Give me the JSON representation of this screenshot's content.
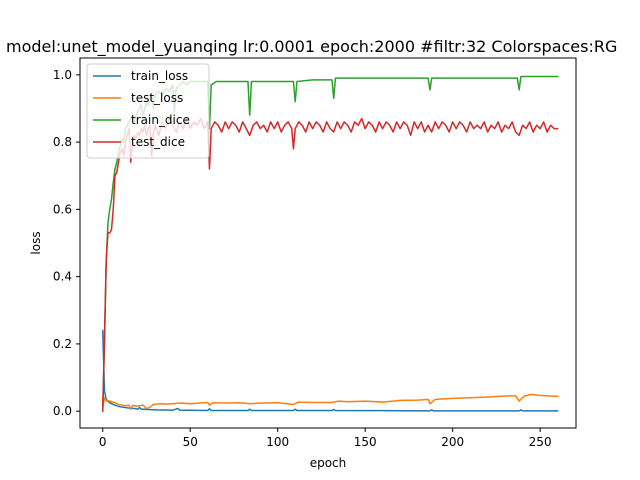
{
  "chart_data": {
    "type": "line",
    "title": "model:unet_model_yuanqing lr:0.0001 epoch:2000 #filtr:32 Colorspaces:RG",
    "xlabel": "epoch",
    "ylabel": "loss",
    "xlim": [
      -13,
      270.5
    ],
    "ylim": [
      -0.05,
      1.05
    ],
    "xticks": [
      0,
      50,
      100,
      150,
      200,
      250
    ],
    "yticks": [
      0.0,
      0.2,
      0.4,
      0.6,
      0.8,
      1.0
    ],
    "xtick_labels": [
      "0",
      "50",
      "100",
      "150",
      "200",
      "250"
    ],
    "ytick_labels": [
      "0.0",
      "0.2",
      "0.4",
      "0.6",
      "0.8",
      "1.0"
    ],
    "grid": false,
    "legend_position": "top-left",
    "series": [
      {
        "name": "train_loss",
        "color": "#1f77b4",
        "points": [
          [
            0,
            0.24
          ],
          [
            1,
            0.06
          ],
          [
            2,
            0.035
          ],
          [
            4,
            0.025
          ],
          [
            6,
            0.02
          ],
          [
            8,
            0.016
          ],
          [
            10,
            0.013
          ],
          [
            14,
            0.01
          ],
          [
            18,
            0.008
          ],
          [
            20,
            0.006
          ],
          [
            21,
            0.011
          ],
          [
            22,
            0.006
          ],
          [
            30,
            0.004
          ],
          [
            40,
            0.003
          ],
          [
            43,
            0.008
          ],
          [
            44,
            0.003
          ],
          [
            60,
            0.002
          ],
          [
            61,
            0.007
          ],
          [
            62,
            0.002
          ],
          [
            83,
            0.002
          ],
          [
            84,
            0.006
          ],
          [
            85,
            0.002
          ],
          [
            109,
            0.002
          ],
          [
            110,
            0.006
          ],
          [
            111,
            0.002
          ],
          [
            131,
            0.002
          ],
          [
            132,
            0.005
          ],
          [
            133,
            0.002
          ],
          [
            187,
            0.001
          ],
          [
            188,
            0.004
          ],
          [
            189,
            0.001
          ],
          [
            238,
            0.001
          ],
          [
            239,
            0.004
          ],
          [
            240,
            0.001
          ],
          [
            260,
            0.001
          ]
        ]
      },
      {
        "name": "test_loss",
        "color": "#ff7f0e",
        "points": [
          [
            0,
            0.01
          ],
          [
            1,
            0.04
          ],
          [
            2,
            0.03
          ],
          [
            3,
            0.032
          ],
          [
            5,
            0.028
          ],
          [
            7,
            0.025
          ],
          [
            9,
            0.02
          ],
          [
            11,
            0.018
          ],
          [
            13,
            0.016
          ],
          [
            15,
            0.018
          ],
          [
            16,
            0.006
          ],
          [
            17,
            0.017
          ],
          [
            20,
            0.015
          ],
          [
            23,
            0.018
          ],
          [
            25,
            0.008
          ],
          [
            27,
            0.012
          ],
          [
            29,
            0.02
          ],
          [
            33,
            0.022
          ],
          [
            37,
            0.021
          ],
          [
            41,
            0.023
          ],
          [
            45,
            0.024
          ],
          [
            50,
            0.022
          ],
          [
            55,
            0.024
          ],
          [
            60,
            0.026
          ],
          [
            61,
            0.018
          ],
          [
            63,
            0.025
          ],
          [
            70,
            0.024
          ],
          [
            78,
            0.025
          ],
          [
            84,
            0.022
          ],
          [
            90,
            0.024
          ],
          [
            100,
            0.025
          ],
          [
            109,
            0.02
          ],
          [
            112,
            0.027
          ],
          [
            120,
            0.026
          ],
          [
            131,
            0.026
          ],
          [
            135,
            0.03
          ],
          [
            140,
            0.028
          ],
          [
            150,
            0.03
          ],
          [
            160,
            0.027
          ],
          [
            170,
            0.032
          ],
          [
            180,
            0.033
          ],
          [
            186,
            0.035
          ],
          [
            187,
            0.022
          ],
          [
            190,
            0.035
          ],
          [
            200,
            0.038
          ],
          [
            210,
            0.04
          ],
          [
            220,
            0.042
          ],
          [
            230,
            0.045
          ],
          [
            236,
            0.046
          ],
          [
            238,
            0.03
          ],
          [
            241,
            0.045
          ],
          [
            245,
            0.05
          ],
          [
            250,
            0.047
          ],
          [
            255,
            0.045
          ],
          [
            260,
            0.044
          ]
        ]
      },
      {
        "name": "train_dice",
        "color": "#2ca02c",
        "points": [
          [
            0,
            0.01
          ],
          [
            1,
            0.2
          ],
          [
            2,
            0.45
          ],
          [
            3,
            0.56
          ],
          [
            4,
            0.6
          ],
          [
            5,
            0.63
          ],
          [
            6,
            0.68
          ],
          [
            7,
            0.72
          ],
          [
            8,
            0.74
          ],
          [
            9,
            0.77
          ],
          [
            10,
            0.79
          ],
          [
            11,
            0.81
          ],
          [
            12,
            0.8
          ],
          [
            13,
            0.84
          ],
          [
            14,
            0.85
          ],
          [
            15,
            0.86
          ],
          [
            16,
            0.87
          ],
          [
            17,
            0.88
          ],
          [
            18,
            0.86
          ],
          [
            19,
            0.88
          ],
          [
            20,
            0.89
          ],
          [
            21,
            0.9
          ],
          [
            22,
            0.91
          ],
          [
            23,
            0.88
          ],
          [
            24,
            0.9
          ],
          [
            25,
            0.92
          ],
          [
            26,
            0.91
          ],
          [
            27,
            0.93
          ],
          [
            28,
            0.94
          ],
          [
            29,
            0.9
          ],
          [
            30,
            0.94
          ],
          [
            32,
            0.95
          ],
          [
            34,
            0.94
          ],
          [
            36,
            0.96
          ],
          [
            38,
            0.95
          ],
          [
            40,
            0.97
          ],
          [
            41,
            0.89
          ],
          [
            42,
            0.96
          ],
          [
            44,
            0.97
          ],
          [
            46,
            0.98
          ],
          [
            48,
            0.97
          ],
          [
            50,
            0.98
          ],
          [
            55,
            0.98
          ],
          [
            60,
            0.98
          ],
          [
            61,
            0.84
          ],
          [
            62,
            0.97
          ],
          [
            65,
            0.98
          ],
          [
            70,
            0.98
          ],
          [
            80,
            0.98
          ],
          [
            83,
            0.98
          ],
          [
            84,
            0.88
          ],
          [
            85,
            0.98
          ],
          [
            95,
            0.98
          ],
          [
            105,
            0.98
          ],
          [
            109,
            0.98
          ],
          [
            110,
            0.92
          ],
          [
            111,
            0.98
          ],
          [
            120,
            0.985
          ],
          [
            131,
            0.985
          ],
          [
            132,
            0.93
          ],
          [
            133,
            0.99
          ],
          [
            150,
            0.99
          ],
          [
            170,
            0.99
          ],
          [
            186,
            0.99
          ],
          [
            187,
            0.955
          ],
          [
            188,
            0.99
          ],
          [
            210,
            0.99
          ],
          [
            237,
            0.99
          ],
          [
            238,
            0.955
          ],
          [
            239,
            0.995
          ],
          [
            260,
            0.995
          ]
        ]
      },
      {
        "name": "test_dice",
        "color": "#d62728",
        "points": [
          [
            0,
            0.0
          ],
          [
            1,
            0.22
          ],
          [
            2,
            0.45
          ],
          [
            3,
            0.53
          ],
          [
            4,
            0.53
          ],
          [
            5,
            0.54
          ],
          [
            6,
            0.6
          ],
          [
            7,
            0.7
          ],
          [
            8,
            0.71
          ],
          [
            9,
            0.74
          ],
          [
            10,
            0.77
          ],
          [
            11,
            0.78
          ],
          [
            12,
            0.76
          ],
          [
            13,
            0.8
          ],
          [
            14,
            0.82
          ],
          [
            15,
            0.84
          ],
          [
            16,
            0.74
          ],
          [
            17,
            0.8
          ],
          [
            18,
            0.82
          ],
          [
            19,
            0.81
          ],
          [
            20,
            0.83
          ],
          [
            21,
            0.82
          ],
          [
            22,
            0.84
          ],
          [
            23,
            0.83
          ],
          [
            24,
            0.85
          ],
          [
            25,
            0.82
          ],
          [
            26,
            0.84
          ],
          [
            27,
            0.85
          ],
          [
            28,
            0.76
          ],
          [
            29,
            0.83
          ],
          [
            30,
            0.85
          ],
          [
            32,
            0.82
          ],
          [
            34,
            0.86
          ],
          [
            36,
            0.84
          ],
          [
            38,
            0.87
          ],
          [
            40,
            0.85
          ],
          [
            42,
            0.83
          ],
          [
            44,
            0.86
          ],
          [
            46,
            0.84
          ],
          [
            48,
            0.87
          ],
          [
            50,
            0.84
          ],
          [
            52,
            0.86
          ],
          [
            54,
            0.85
          ],
          [
            56,
            0.87
          ],
          [
            58,
            0.84
          ],
          [
            60,
            0.86
          ],
          [
            61,
            0.72
          ],
          [
            62,
            0.84
          ],
          [
            64,
            0.86
          ],
          [
            66,
            0.85
          ],
          [
            68,
            0.83
          ],
          [
            70,
            0.86
          ],
          [
            72,
            0.84
          ],
          [
            74,
            0.86
          ],
          [
            76,
            0.85
          ],
          [
            78,
            0.83
          ],
          [
            80,
            0.86
          ],
          [
            82,
            0.84
          ],
          [
            84,
            0.82
          ],
          [
            86,
            0.85
          ],
          [
            88,
            0.86
          ],
          [
            90,
            0.84
          ],
          [
            92,
            0.85
          ],
          [
            94,
            0.83
          ],
          [
            96,
            0.86
          ],
          [
            98,
            0.84
          ],
          [
            100,
            0.86
          ],
          [
            102,
            0.83
          ],
          [
            104,
            0.85
          ],
          [
            106,
            0.86
          ],
          [
            108,
            0.84
          ],
          [
            109,
            0.78
          ],
          [
            110,
            0.84
          ],
          [
            112,
            0.86
          ],
          [
            114,
            0.85
          ],
          [
            116,
            0.83
          ],
          [
            118,
            0.86
          ],
          [
            120,
            0.84
          ],
          [
            122,
            0.86
          ],
          [
            124,
            0.85
          ],
          [
            126,
            0.83
          ],
          [
            128,
            0.86
          ],
          [
            130,
            0.84
          ],
          [
            132,
            0.83
          ],
          [
            134,
            0.86
          ],
          [
            136,
            0.84
          ],
          [
            138,
            0.86
          ],
          [
            140,
            0.85
          ],
          [
            142,
            0.83
          ],
          [
            144,
            0.86
          ],
          [
            146,
            0.85
          ],
          [
            148,
            0.87
          ],
          [
            150,
            0.84
          ],
          [
            152,
            0.86
          ],
          [
            154,
            0.85
          ],
          [
            156,
            0.83
          ],
          [
            158,
            0.86
          ],
          [
            160,
            0.84
          ],
          [
            162,
            0.86
          ],
          [
            164,
            0.85
          ],
          [
            166,
            0.83
          ],
          [
            168,
            0.86
          ],
          [
            170,
            0.84
          ],
          [
            172,
            0.86
          ],
          [
            174,
            0.85
          ],
          [
            176,
            0.82
          ],
          [
            178,
            0.86
          ],
          [
            180,
            0.84
          ],
          [
            182,
            0.86
          ],
          [
            184,
            0.83
          ],
          [
            186,
            0.85
          ],
          [
            188,
            0.83
          ],
          [
            190,
            0.86
          ],
          [
            192,
            0.84
          ],
          [
            194,
            0.86
          ],
          [
            196,
            0.85
          ],
          [
            198,
            0.83
          ],
          [
            200,
            0.86
          ],
          [
            202,
            0.84
          ],
          [
            204,
            0.86
          ],
          [
            206,
            0.85
          ],
          [
            208,
            0.83
          ],
          [
            210,
            0.86
          ],
          [
            212,
            0.84
          ],
          [
            214,
            0.85
          ],
          [
            216,
            0.84
          ],
          [
            218,
            0.86
          ],
          [
            220,
            0.83
          ],
          [
            222,
            0.85
          ],
          [
            224,
            0.84
          ],
          [
            226,
            0.86
          ],
          [
            228,
            0.83
          ],
          [
            230,
            0.85
          ],
          [
            232,
            0.84
          ],
          [
            234,
            0.86
          ],
          [
            236,
            0.83
          ],
          [
            238,
            0.82
          ],
          [
            240,
            0.85
          ],
          [
            242,
            0.84
          ],
          [
            244,
            0.86
          ],
          [
            246,
            0.83
          ],
          [
            248,
            0.85
          ],
          [
            250,
            0.84
          ],
          [
            252,
            0.86
          ],
          [
            254,
            0.83
          ],
          [
            256,
            0.85
          ],
          [
            258,
            0.84
          ],
          [
            260,
            0.84
          ]
        ]
      }
    ]
  }
}
